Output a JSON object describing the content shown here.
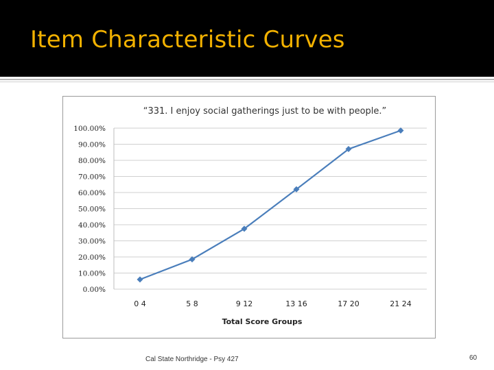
{
  "slide": {
    "title": "Item Characteristic Curves",
    "footer": "Cal State Northridge - Psy 427",
    "page_number": "60"
  },
  "colors": {
    "title_bar": "#000000",
    "title_text": "#f2b100",
    "series_line": "#4a7ebb",
    "gridline": "#cfcfcf"
  },
  "chart_data": {
    "type": "line",
    "title": "“331. I enjoy social gatherings just to be with people.”",
    "xlabel": "Total Score Groups",
    "ylabel": "",
    "categories": [
      "0 4",
      "5 8",
      "9 12",
      "13 16",
      "17 20",
      "21 24"
    ],
    "series": [
      {
        "values": [
          0.06,
          0.185,
          0.375,
          0.62,
          0.87,
          0.985
        ]
      }
    ],
    "ylim": [
      0,
      1
    ],
    "yticks": [
      "0.00%",
      "10.00%",
      "20.00%",
      "30.00%",
      "40.00%",
      "50.00%",
      "60.00%",
      "70.00%",
      "80.00%",
      "90.00%",
      "100.00%"
    ],
    "grid": true,
    "marker": "diamond"
  }
}
